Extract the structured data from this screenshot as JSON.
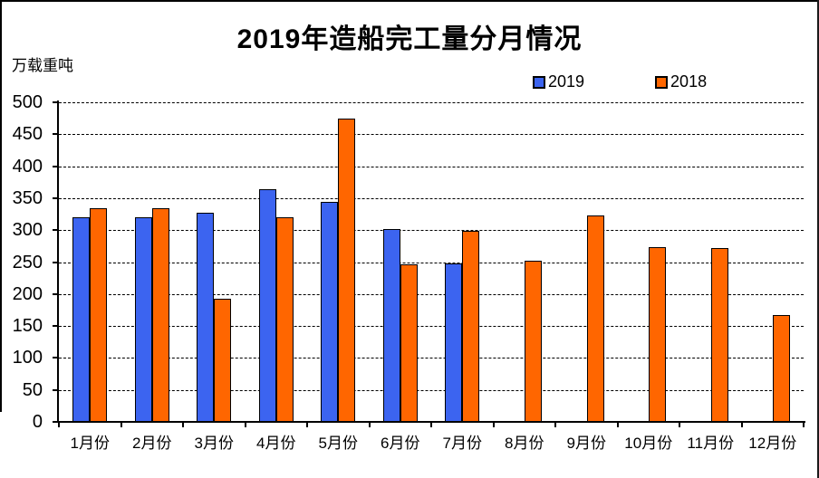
{
  "chart": {
    "frame": {
      "border_color": "#000000"
    },
    "background": "#ffffff"
  },
  "chart_data": {
    "type": "bar",
    "title": "2019年造船完工量分月情况",
    "ylabel": "万载重吨",
    "xlabel": "",
    "categories": [
      "1月份",
      "2月份",
      "3月份",
      "4月份",
      "5月份",
      "6月份",
      "7月份",
      "8月份",
      "9月份",
      "10月份",
      "11月份",
      "12月份"
    ],
    "series": [
      {
        "name": "2019",
        "color": "#3C64F0",
        "values": [
          317,
          317,
          325,
          361,
          341,
          299,
          245,
          null,
          null,
          null,
          null,
          null
        ]
      },
      {
        "name": "2018",
        "color": "#FF6600",
        "values": [
          331,
          331,
          190,
          317,
          472,
          243,
          296,
          249,
          320,
          271,
          269,
          164
        ]
      }
    ],
    "ylim": [
      0,
      500
    ],
    "y_ticks": [
      0,
      50,
      100,
      150,
      200,
      250,
      300,
      350,
      400,
      450,
      500
    ],
    "grid": "dashed horizontal",
    "legend_position": "top-right",
    "bar_border_color": "#000000"
  }
}
